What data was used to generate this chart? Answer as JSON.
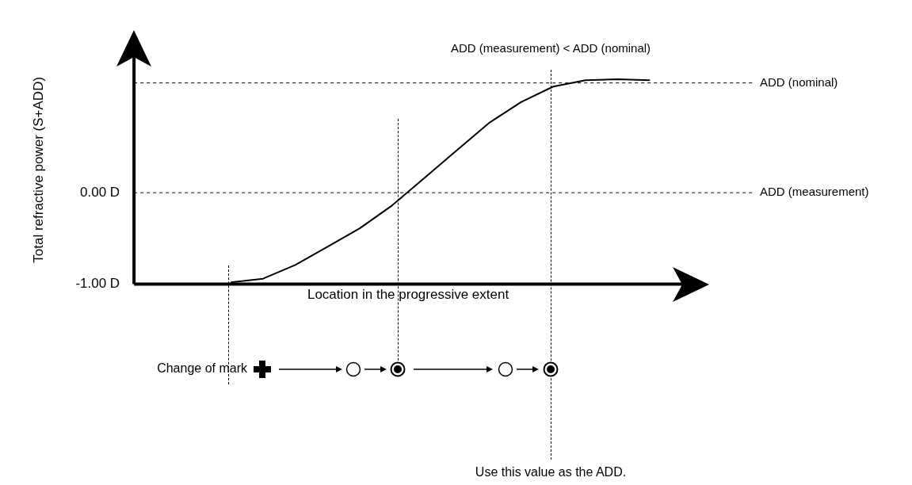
{
  "chart_data": {
    "type": "line",
    "xlabel": "Location in the progressive extent",
    "ylabel": "Total refractive power (S+ADD)",
    "categories": [
      null,
      null,
      null,
      null,
      null,
      null,
      null,
      null,
      null,
      null,
      null,
      null,
      null,
      null,
      null,
      null,
      null,
      null
    ],
    "values": [
      null,
      null,
      null,
      -0.98,
      -0.94,
      -0.79,
      -0.59,
      -0.39,
      -0.14,
      0.16,
      0.46,
      0.76,
      0.99,
      1.16,
      1.23,
      1.24,
      1.23,
      null
    ],
    "color": "#000000",
    "ylim": [
      -1,
      1.5
    ],
    "yticks": [
      {
        "value": -1,
        "label": "-1.00 D"
      },
      {
        "value": 0,
        "label": "0.00 D"
      }
    ],
    "tick_labels": "y",
    "grid": false,
    "legend": false,
    "ref_lines": [
      {
        "axis": "y",
        "value": 0,
        "label": "ADD (measurement)",
        "line_style": "dashed"
      },
      {
        "axis": "y",
        "value": 1.2,
        "label": "ADD (nominal)",
        "line_style": "dashed"
      }
    ],
    "annotations": [
      "ADD (measurement) < ADD (nominal)",
      "Change of mark",
      "Use this value as the ADD."
    ]
  }
}
